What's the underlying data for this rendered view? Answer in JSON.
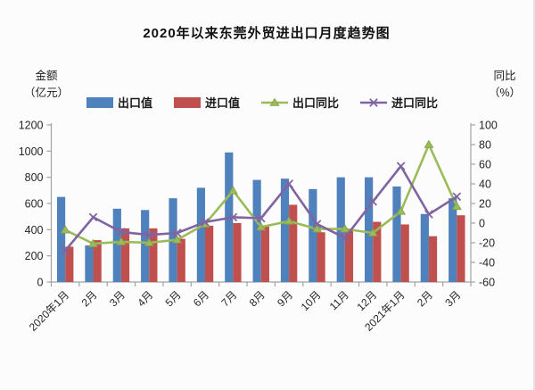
{
  "colors": {
    "export_bar": "#4f81bd",
    "import_bar": "#c0504d",
    "export_yoy": "#9bbb59",
    "export_yoy_edge": "#85a049",
    "import_yoy": "#8064a2",
    "axis": "#a3a3a3",
    "tick_text": "#262626",
    "background": "#fcfcfc"
  },
  "chart_data": {
    "type": "bar+line combo (dual axis)",
    "title": "2020年以来东莞外贸进出口月度趋势图",
    "categories": [
      "2020年1月",
      "2月",
      "3月",
      "4月",
      "5月",
      "6月",
      "7月",
      "8月",
      "9月",
      "10月",
      "11月",
      "12月",
      "2021年1月",
      "2月",
      "3月"
    ],
    "series": [
      {
        "name": "出口值",
        "chart": "bar",
        "axis": "left",
        "color_key": "export_bar",
        "values": [
          650,
          280,
          560,
          550,
          640,
          720,
          990,
          780,
          790,
          710,
          800,
          800,
          730,
          520,
          640
        ]
      },
      {
        "name": "进口值",
        "chart": "bar",
        "axis": "left",
        "color_key": "import_bar",
        "values": [
          270,
          320,
          410,
          410,
          330,
          430,
          450,
          430,
          590,
          380,
          400,
          460,
          440,
          350,
          510
        ]
      },
      {
        "name": "出口同比",
        "chart": "line",
        "marker": "triangle",
        "axis": "right",
        "color_key": "export_yoy",
        "values": [
          -7,
          -21,
          -19,
          -20,
          -17,
          -1,
          33,
          -4,
          2,
          -6,
          -6,
          -10,
          12,
          80,
          17
        ]
      },
      {
        "name": "进口同比",
        "chart": "line",
        "marker": "x",
        "axis": "right",
        "color_key": "import_yoy",
        "values": [
          -28,
          6,
          -9,
          -12,
          -10,
          1,
          6,
          5,
          40,
          -1,
          -15,
          22,
          58,
          9,
          27
        ]
      }
    ],
    "left_axis": {
      "title_line1": "金额",
      "title_line2": "（亿元）",
      "min": 0,
      "max": 1200,
      "step": 200
    },
    "right_axis": {
      "title_line1": "同比",
      "title_line2": "（%）",
      "min": -60,
      "max": 100,
      "step": 20
    },
    "legend_position": "top",
    "grid": "off",
    "x_label_rotation_deg": -45
  }
}
